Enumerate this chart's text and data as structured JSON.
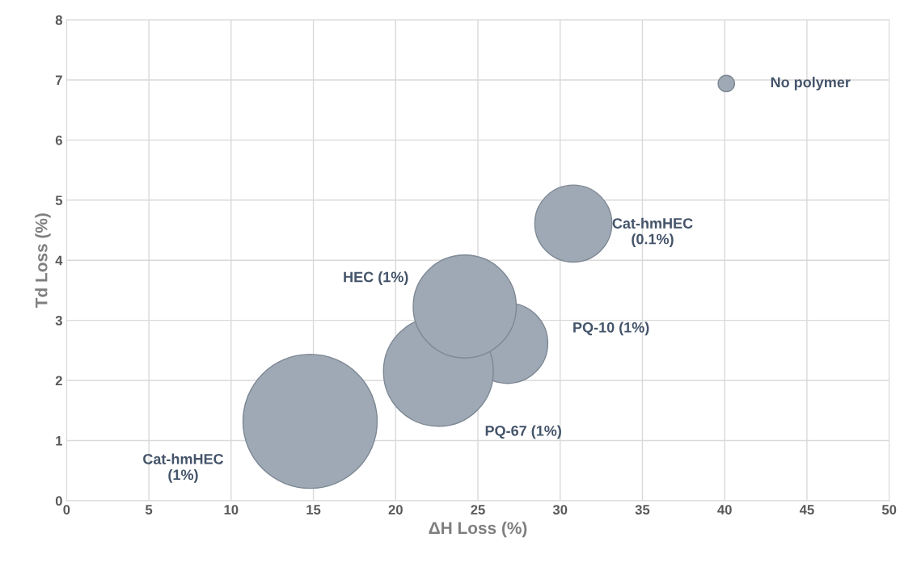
{
  "chart_data": {
    "type": "bubble",
    "xlabel": "ΔH Loss (%)",
    "ylabel": "Td Loss (%)",
    "xlim": [
      0,
      50
    ],
    "xticks": [
      0,
      5,
      10,
      15,
      20,
      25,
      30,
      35,
      40,
      45,
      50
    ],
    "ylim": [
      0,
      8
    ],
    "yticks": [
      0,
      1,
      2,
      3,
      4,
      5,
      6,
      7,
      8
    ],
    "grid": true,
    "legend": false,
    "series": [
      {
        "name": "No polymer",
        "color": "#9ea9b5",
        "x": [
          40.1
        ],
        "values": [
          6.94
        ],
        "sizes": [
          0.015
        ]
      },
      {
        "name": "Cat-hmHEC\n(0.1%)",
        "color": "#9ea9b5",
        "x": [
          30.8
        ],
        "values": [
          4.61
        ],
        "sizes": [
          0.33
        ]
      },
      {
        "name": "PQ-10 (1%)",
        "color": "#9ea9b5",
        "x": [
          26.8
        ],
        "values": [
          2.62
        ],
        "sizes": [
          0.36
        ]
      },
      {
        "name": "PQ-67 (1%)",
        "color": "#9ea9b5",
        "x": [
          22.6
        ],
        "values": [
          2.15
        ],
        "sizes": [
          0.67
        ]
      },
      {
        "name": "HEC (1%)",
        "color": "#9ea9b5",
        "x": [
          24.2
        ],
        "values": [
          3.23
        ],
        "sizes": [
          0.59
        ]
      },
      {
        "name": "Cat-hmHEC\n(1%)",
        "color": "#9ea9b5",
        "x": [
          14.8
        ],
        "values": [
          1.32
        ],
        "sizes": [
          1.0
        ]
      }
    ]
  }
}
